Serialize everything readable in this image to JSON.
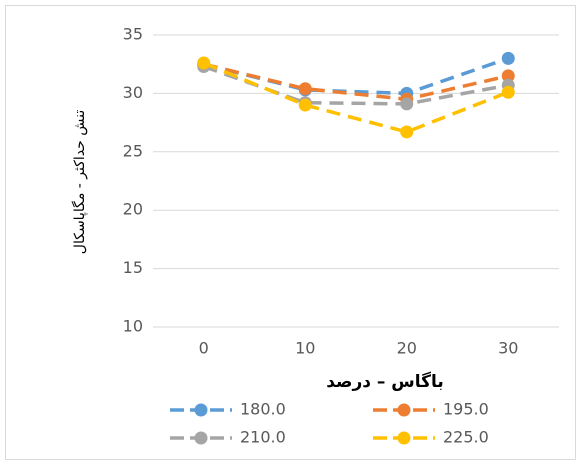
{
  "chart_data": {
    "type": "line",
    "x_label": "باگاس – درصد",
    "y_label": "تنش حداکثر - مگاپاسکال",
    "categories": [
      "0",
      "10",
      "20",
      "30"
    ],
    "series": [
      {
        "name": "180.0",
        "color": "#5b9bd5",
        "values": [
          32.5,
          30.3,
          30.0,
          33.0
        ]
      },
      {
        "name": "195.0",
        "color": "#ed7d31",
        "values": [
          32.5,
          30.4,
          29.5,
          31.5
        ]
      },
      {
        "name": "210.0",
        "color": "#a5a5a5",
        "values": [
          32.3,
          29.2,
          29.1,
          30.7
        ]
      },
      {
        "name": "225.0",
        "color": "#ffc000",
        "values": [
          32.6,
          29.0,
          26.7,
          30.1
        ]
      }
    ],
    "ylim": [
      10,
      35
    ],
    "yticks": [
      10,
      15,
      20,
      25,
      30,
      35
    ],
    "grid": true,
    "legend": "bottom"
  }
}
